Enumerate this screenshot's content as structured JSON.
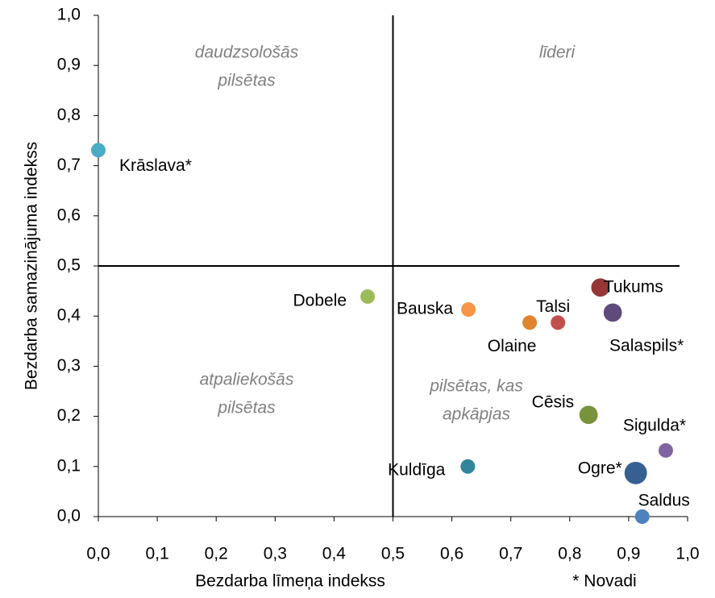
{
  "chart_data": {
    "type": "bubble",
    "xlabel": "Bezdarba līmeņa indekss",
    "ylabel": "Bezdarba samazinājuma indekss",
    "footnote": "* Novadi",
    "xlim": [
      0,
      1
    ],
    "ylim": [
      0,
      1
    ],
    "xticks": [
      {
        "value": 0,
        "label": "0,0"
      },
      {
        "value": 0.1,
        "label": "0,1"
      },
      {
        "value": 0.2,
        "label": "0,2"
      },
      {
        "value": 0.3,
        "label": "0,3"
      },
      {
        "value": 0.4,
        "label": "0,4"
      },
      {
        "value": 0.5,
        "label": "0,5"
      },
      {
        "value": 0.6,
        "label": "0,6"
      },
      {
        "value": 0.7,
        "label": "0,7"
      },
      {
        "value": 0.8,
        "label": "0,8"
      },
      {
        "value": 0.9,
        "label": "0,9"
      },
      {
        "value": 1,
        "label": "1,0"
      }
    ],
    "yticks": [
      {
        "value": 0,
        "label": "0,0"
      },
      {
        "value": 0.1,
        "label": "0,1"
      },
      {
        "value": 0.2,
        "label": "0,2"
      },
      {
        "value": 0.3,
        "label": "0,3"
      },
      {
        "value": 0.4,
        "label": "0,4"
      },
      {
        "value": 0.5,
        "label": "0,5"
      },
      {
        "value": 0.6,
        "label": "0,6"
      },
      {
        "value": 0.7,
        "label": "0,7"
      },
      {
        "value": 0.8,
        "label": "0,8"
      },
      {
        "value": 0.9,
        "label": "0,9"
      },
      {
        "value": 1,
        "label": "1,0"
      }
    ],
    "reference_lines": {
      "x": 0.5,
      "y": 0.5
    },
    "annotations": [
      {
        "lines": [
          "daudzsološās",
          "pilsētas"
        ]
      },
      {
        "lines": [
          "līderi"
        ]
      },
      {
        "lines": [
          "atpaliekošās",
          "pilsētas"
        ]
      },
      {
        "lines": [
          "pilsētas, kas",
          "apkāpjas"
        ]
      }
    ],
    "series": [
      {
        "name": "Krāslava*",
        "color": "#4bacc6",
        "x": [
          0.0
        ],
        "values": [
          0.731
        ],
        "sizes": [
          1
        ]
      },
      {
        "name": "Dobele",
        "color": "#9bbb59",
        "x": [
          0.457
        ],
        "values": [
          0.439
        ],
        "sizes": [
          1
        ]
      },
      {
        "name": "Bauska",
        "color": "#f79646",
        "x": [
          0.628
        ],
        "values": [
          0.413
        ],
        "sizes": [
          1
        ]
      },
      {
        "name": "Olaine",
        "color": "#e0852e",
        "x": [
          0.732
        ],
        "values": [
          0.387
        ],
        "sizes": [
          1
        ]
      },
      {
        "name": "Talsi",
        "color": "#c0504d",
        "x": [
          0.78
        ],
        "values": [
          0.387
        ],
        "sizes": [
          1
        ]
      },
      {
        "name": "Tukums",
        "color": "#953735",
        "x": [
          0.852
        ],
        "values": [
          0.457
        ],
        "sizes": [
          1.6
        ]
      },
      {
        "name": "Salaspils*",
        "color": "#604a7b",
        "x": [
          0.873
        ],
        "values": [
          0.407
        ],
        "sizes": [
          1.6
        ]
      },
      {
        "name": "Cēsis",
        "color": "#77933c",
        "x": [
          0.832
        ],
        "values": [
          0.203
        ],
        "sizes": [
          1.6
        ]
      },
      {
        "name": "Sigulda*",
        "color": "#8064a2",
        "x": [
          0.963
        ],
        "values": [
          0.132
        ],
        "sizes": [
          1
        ]
      },
      {
        "name": "Ogre*",
        "color": "#366092",
        "x": [
          0.912
        ],
        "values": [
          0.087
        ],
        "sizes": [
          2.4
        ]
      },
      {
        "name": "Saldus",
        "color": "#4f81bd",
        "x": [
          0.923
        ],
        "values": [
          0.0
        ],
        "sizes": [
          1
        ]
      },
      {
        "name": "Kuldīga",
        "color": "#31859c",
        "x": [
          0.627
        ],
        "values": [
          0.1
        ],
        "sizes": [
          1
        ]
      }
    ]
  }
}
